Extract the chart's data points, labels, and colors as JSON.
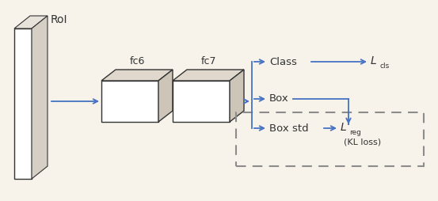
{
  "bg_color": "#f7f2ea",
  "blue": "#4472C4",
  "gray": "#8c8c8c",
  "black": "#1a1a1a",
  "dark": "#333333",
  "figsize": [
    5.53,
    2.54
  ],
  "dpi": 100,
  "roi_label": "RoI",
  "fc6_label": "fc6",
  "fc7_label": "fc7",
  "class_label": "Class",
  "box_label": "Box",
  "boxstd_label": "Box std",
  "lcls_label": "L",
  "lcls_sub": "cls",
  "lreg_label": "L",
  "lreg_sub": "reg",
  "klloss_label": "(KL loss)"
}
